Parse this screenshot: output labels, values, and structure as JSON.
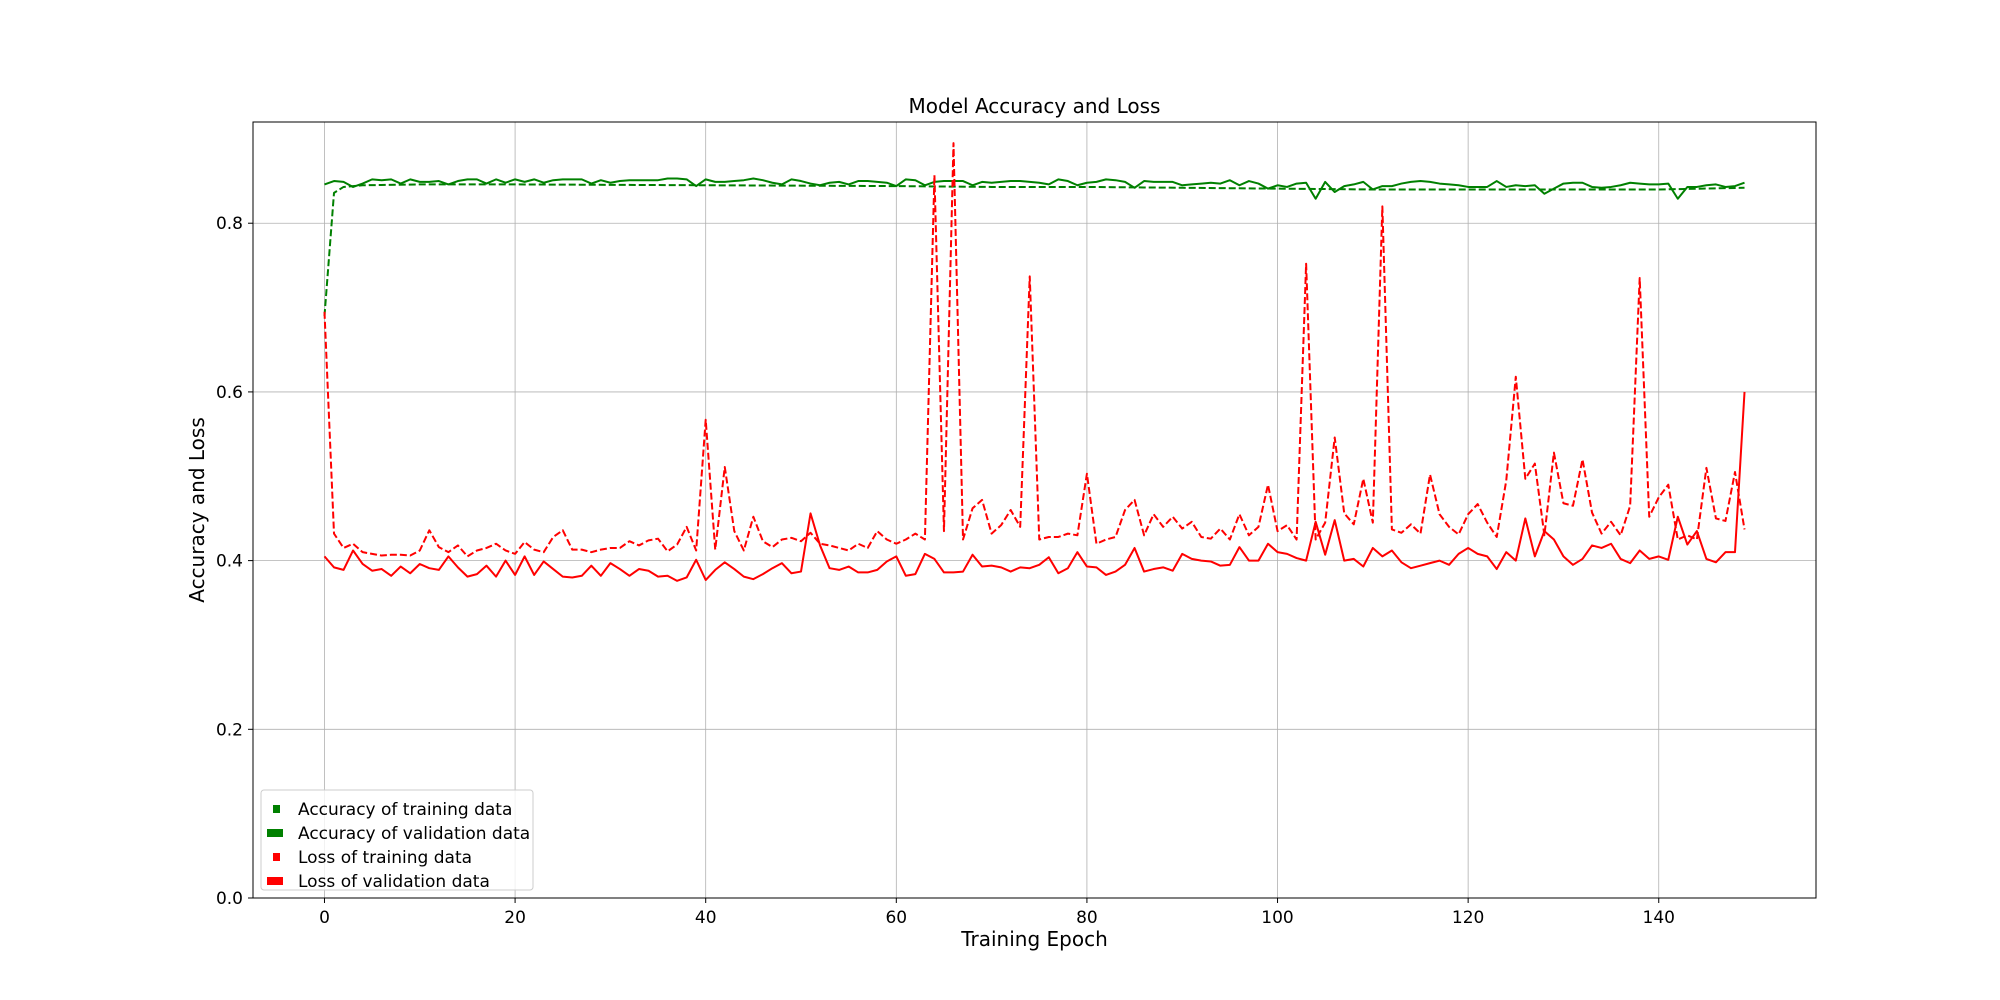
{
  "chart_data": {
    "type": "line",
    "title": "Model Accuracy and Loss",
    "xlabel": "Training Epoch",
    "ylabel": "Accuracy and Loss",
    "xlim": [
      -7.5,
      156.5
    ],
    "ylim": [
      0.0,
      0.92
    ],
    "x_ticks": [
      0,
      20,
      40,
      60,
      80,
      100,
      120,
      140
    ],
    "y_ticks": [
      0.0,
      0.2,
      0.4,
      0.6,
      0.8
    ],
    "x_tick_labels": [
      "0",
      "20",
      "40",
      "60",
      "80",
      "100",
      "120",
      "140"
    ],
    "y_tick_labels": [
      "0.0",
      "0.2",
      "0.4",
      "0.6",
      "0.8"
    ],
    "grid": true,
    "legend_position": "lower-left",
    "series": [
      {
        "name": "Accuracy of training data",
        "color": "#008000",
        "style": "dashed",
        "x": [
          0,
          1,
          2,
          4,
          10,
          20,
          40,
          60,
          70,
          80,
          90,
          100,
          110,
          120,
          130,
          140,
          149
        ],
        "y": [
          0.69,
          0.836,
          0.843,
          0.845,
          0.846,
          0.846,
          0.845,
          0.844,
          0.843,
          0.843,
          0.842,
          0.841,
          0.84,
          0.84,
          0.84,
          0.84,
          0.842
        ]
      },
      {
        "name": "Accuracy of validation data",
        "color": "#008000",
        "style": "solid",
        "x": [
          0,
          1,
          2,
          3,
          4,
          5,
          6,
          7,
          8,
          9,
          10,
          11,
          12,
          13,
          14,
          15,
          16,
          17,
          18,
          19,
          20,
          21,
          22,
          23,
          24,
          25,
          26,
          27,
          28,
          29,
          30,
          31,
          32,
          33,
          34,
          35,
          36,
          37,
          38,
          39,
          40,
          41,
          42,
          43,
          44,
          45,
          46,
          47,
          48,
          49,
          50,
          51,
          52,
          53,
          54,
          55,
          56,
          57,
          58,
          59,
          60,
          61,
          62,
          63,
          64,
          65,
          66,
          67,
          68,
          69,
          70,
          71,
          72,
          73,
          74,
          75,
          76,
          77,
          78,
          79,
          80,
          81,
          82,
          83,
          84,
          85,
          86,
          87,
          88,
          89,
          90,
          91,
          92,
          93,
          94,
          95,
          96,
          97,
          98,
          99,
          100,
          101,
          102,
          103,
          104,
          105,
          106,
          107,
          108,
          109,
          110,
          111,
          112,
          113,
          114,
          115,
          116,
          117,
          118,
          119,
          120,
          121,
          122,
          123,
          124,
          125,
          126,
          127,
          128,
          129,
          130,
          131,
          132,
          133,
          134,
          135,
          136,
          137,
          138,
          139,
          140,
          141,
          142,
          143,
          144,
          145,
          146,
          147,
          148,
          149
        ],
        "y": [
          0.846,
          0.85,
          0.849,
          0.843,
          0.847,
          0.852,
          0.851,
          0.852,
          0.847,
          0.852,
          0.849,
          0.849,
          0.85,
          0.846,
          0.85,
          0.852,
          0.852,
          0.847,
          0.852,
          0.848,
          0.852,
          0.849,
          0.852,
          0.848,
          0.851,
          0.852,
          0.852,
          0.852,
          0.847,
          0.851,
          0.848,
          0.85,
          0.851,
          0.851,
          0.851,
          0.851,
          0.853,
          0.853,
          0.852,
          0.844,
          0.852,
          0.849,
          0.849,
          0.85,
          0.851,
          0.853,
          0.851,
          0.848,
          0.846,
          0.852,
          0.85,
          0.847,
          0.845,
          0.848,
          0.849,
          0.846,
          0.85,
          0.85,
          0.849,
          0.848,
          0.844,
          0.852,
          0.851,
          0.845,
          0.849,
          0.85,
          0.85,
          0.85,
          0.845,
          0.849,
          0.848,
          0.849,
          0.85,
          0.85,
          0.849,
          0.848,
          0.846,
          0.852,
          0.85,
          0.845,
          0.848,
          0.849,
          0.852,
          0.851,
          0.849,
          0.842,
          0.85,
          0.849,
          0.849,
          0.849,
          0.845,
          0.846,
          0.847,
          0.848,
          0.847,
          0.851,
          0.845,
          0.85,
          0.847,
          0.841,
          0.845,
          0.843,
          0.847,
          0.848,
          0.829,
          0.849,
          0.837,
          0.844,
          0.846,
          0.849,
          0.84,
          0.844,
          0.844,
          0.847,
          0.849,
          0.85,
          0.849,
          0.847,
          0.846,
          0.845,
          0.843,
          0.843,
          0.843,
          0.85,
          0.843,
          0.845,
          0.844,
          0.845,
          0.835,
          0.841,
          0.847,
          0.848,
          0.848,
          0.843,
          0.842,
          0.843,
          0.845,
          0.848,
          0.847,
          0.846,
          0.846,
          0.847,
          0.829,
          0.843,
          0.843,
          0.845,
          0.846,
          0.843,
          0.844,
          0.848
        ]
      },
      {
        "name": "Loss of training data",
        "color": "#ff0000",
        "style": "dashed",
        "x": [
          0,
          1,
          2,
          3,
          4,
          5,
          6,
          7,
          8,
          9,
          10,
          11,
          12,
          13,
          14,
          15,
          16,
          17,
          18,
          19,
          20,
          21,
          22,
          23,
          24,
          25,
          26,
          27,
          28,
          29,
          30,
          31,
          32,
          33,
          34,
          35,
          36,
          37,
          38,
          39,
          40,
          41,
          42,
          43,
          44,
          45,
          46,
          47,
          48,
          49,
          50,
          51,
          52,
          53,
          54,
          55,
          56,
          57,
          58,
          59,
          60,
          61,
          62,
          63,
          64,
          65,
          66,
          67,
          68,
          69,
          70,
          71,
          72,
          73,
          74,
          75,
          76,
          77,
          78,
          79,
          80,
          81,
          82,
          83,
          84,
          85,
          86,
          87,
          88,
          89,
          90,
          91,
          92,
          93,
          94,
          95,
          96,
          97,
          98,
          99,
          100,
          101,
          102,
          103,
          104,
          105,
          106,
          107,
          108,
          109,
          110,
          111,
          112,
          113,
          114,
          115,
          116,
          117,
          118,
          119,
          120,
          121,
          122,
          123,
          124,
          125,
          126,
          127,
          128,
          129,
          130,
          131,
          132,
          133,
          134,
          135,
          136,
          137,
          138,
          139,
          140,
          141,
          142,
          143,
          144,
          145,
          146,
          147,
          148,
          149
        ],
        "y": [
          0.695,
          0.432,
          0.415,
          0.42,
          0.41,
          0.408,
          0.406,
          0.407,
          0.407,
          0.406,
          0.412,
          0.436,
          0.416,
          0.41,
          0.418,
          0.405,
          0.412,
          0.415,
          0.42,
          0.412,
          0.408,
          0.422,
          0.413,
          0.41,
          0.428,
          0.436,
          0.413,
          0.413,
          0.41,
          0.413,
          0.415,
          0.415,
          0.423,
          0.418,
          0.424,
          0.426,
          0.411,
          0.419,
          0.44,
          0.412,
          0.567,
          0.413,
          0.511,
          0.435,
          0.412,
          0.452,
          0.423,
          0.416,
          0.425,
          0.427,
          0.423,
          0.433,
          0.42,
          0.418,
          0.415,
          0.412,
          0.42,
          0.415,
          0.435,
          0.425,
          0.42,
          0.425,
          0.432,
          0.425,
          0.857,
          0.435,
          0.895,
          0.425,
          0.462,
          0.472,
          0.432,
          0.442,
          0.46,
          0.44,
          0.737,
          0.425,
          0.428,
          0.428,
          0.432,
          0.43,
          0.503,
          0.42,
          0.425,
          0.428,
          0.46,
          0.472,
          0.43,
          0.455,
          0.44,
          0.452,
          0.438,
          0.446,
          0.428,
          0.426,
          0.438,
          0.425,
          0.455,
          0.43,
          0.44,
          0.49,
          0.435,
          0.442,
          0.425,
          0.752,
          0.425,
          0.445,
          0.546,
          0.456,
          0.443,
          0.497,
          0.445,
          0.82,
          0.437,
          0.433,
          0.443,
          0.432,
          0.502,
          0.455,
          0.44,
          0.431,
          0.455,
          0.467,
          0.445,
          0.428,
          0.495,
          0.618,
          0.497,
          0.515,
          0.43,
          0.528,
          0.468,
          0.465,
          0.52,
          0.457,
          0.432,
          0.446,
          0.43,
          0.465,
          0.735,
          0.452,
          0.475,
          0.49,
          0.425,
          0.43,
          0.425,
          0.51,
          0.45,
          0.447,
          0.505,
          0.437
        ]
      },
      {
        "name": "Loss of validation data",
        "color": "#ff0000",
        "style": "solid",
        "x": [
          0,
          1,
          2,
          3,
          4,
          5,
          6,
          7,
          8,
          9,
          10,
          11,
          12,
          13,
          14,
          15,
          16,
          17,
          18,
          19,
          20,
          21,
          22,
          23,
          24,
          25,
          26,
          27,
          28,
          29,
          30,
          31,
          32,
          33,
          34,
          35,
          36,
          37,
          38,
          39,
          40,
          41,
          42,
          43,
          44,
          45,
          46,
          47,
          48,
          49,
          50,
          51,
          52,
          53,
          54,
          55,
          56,
          57,
          58,
          59,
          60,
          61,
          62,
          63,
          64,
          65,
          66,
          67,
          68,
          69,
          70,
          71,
          72,
          73,
          74,
          75,
          76,
          77,
          78,
          79,
          80,
          81,
          82,
          83,
          84,
          85,
          86,
          87,
          88,
          89,
          90,
          91,
          92,
          93,
          94,
          95,
          96,
          97,
          98,
          99,
          100,
          101,
          102,
          103,
          104,
          105,
          106,
          107,
          108,
          109,
          110,
          111,
          112,
          113,
          114,
          115,
          116,
          117,
          118,
          119,
          120,
          121,
          122,
          123,
          124,
          125,
          126,
          127,
          128,
          129,
          130,
          131,
          132,
          133,
          134,
          135,
          136,
          137,
          138,
          139,
          140,
          141,
          142,
          143,
          144,
          145,
          146,
          147,
          148,
          149
        ],
        "y": [
          0.405,
          0.392,
          0.389,
          0.412,
          0.396,
          0.388,
          0.39,
          0.382,
          0.393,
          0.385,
          0.396,
          0.391,
          0.389,
          0.405,
          0.392,
          0.381,
          0.384,
          0.394,
          0.381,
          0.4,
          0.383,
          0.405,
          0.383,
          0.399,
          0.39,
          0.381,
          0.38,
          0.382,
          0.394,
          0.382,
          0.397,
          0.39,
          0.382,
          0.39,
          0.388,
          0.381,
          0.382,
          0.376,
          0.38,
          0.401,
          0.377,
          0.389,
          0.398,
          0.39,
          0.381,
          0.378,
          0.384,
          0.391,
          0.397,
          0.385,
          0.387,
          0.456,
          0.418,
          0.391,
          0.389,
          0.393,
          0.386,
          0.386,
          0.389,
          0.399,
          0.405,
          0.382,
          0.384,
          0.408,
          0.402,
          0.386,
          0.386,
          0.387,
          0.407,
          0.393,
          0.394,
          0.392,
          0.387,
          0.392,
          0.391,
          0.395,
          0.404,
          0.385,
          0.391,
          0.41,
          0.393,
          0.392,
          0.383,
          0.387,
          0.395,
          0.415,
          0.387,
          0.39,
          0.392,
          0.388,
          0.408,
          0.402,
          0.4,
          0.399,
          0.394,
          0.395,
          0.416,
          0.4,
          0.4,
          0.42,
          0.41,
          0.408,
          0.403,
          0.4,
          0.446,
          0.407,
          0.448,
          0.4,
          0.402,
          0.393,
          0.415,
          0.405,
          0.412,
          0.398,
          0.391,
          0.394,
          0.397,
          0.4,
          0.395,
          0.408,
          0.415,
          0.408,
          0.405,
          0.39,
          0.41,
          0.4,
          0.45,
          0.405,
          0.435,
          0.425,
          0.405,
          0.395,
          0.402,
          0.418,
          0.415,
          0.42,
          0.402,
          0.397,
          0.412,
          0.402,
          0.405,
          0.401,
          0.452,
          0.419,
          0.435,
          0.402,
          0.398,
          0.41,
          0.41,
          0.6
        ]
      }
    ]
  },
  "legend": {
    "items": [
      {
        "label": "Accuracy of training data",
        "color": "#008000",
        "marker": "square-small"
      },
      {
        "label": "Accuracy of validation data",
        "color": "#008000",
        "marker": "rect"
      },
      {
        "label": "Loss of training data",
        "color": "#ff0000",
        "marker": "square-small"
      },
      {
        "label": "Loss of validation data",
        "color": "#ff0000",
        "marker": "rect"
      }
    ]
  }
}
